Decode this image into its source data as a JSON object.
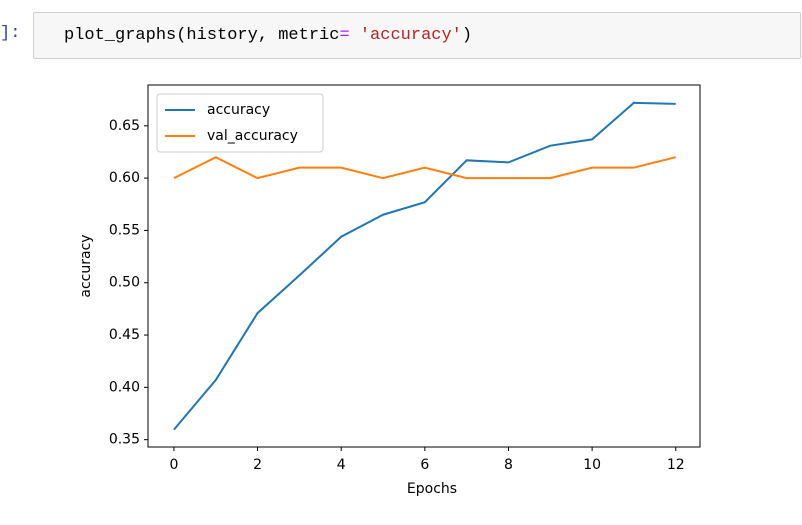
{
  "code_cell": {
    "prompt": "]:",
    "tokens": [
      "plot_graphs(history, metric",
      "=",
      " 'accuracy'",
      ")"
    ]
  },
  "chart_data": {
    "type": "line",
    "xlabel": "Epochs",
    "ylabel": "accuracy",
    "x": [
      0,
      1,
      2,
      3,
      4,
      5,
      6,
      7,
      8,
      9,
      10,
      11,
      12
    ],
    "series": [
      {
        "name": "accuracy",
        "color": "#1f77b4",
        "values": [
          0.3596,
          0.407,
          0.471,
          0.507,
          0.544,
          0.565,
          0.577,
          0.617,
          0.615,
          0.631,
          0.637,
          0.672,
          0.671
        ]
      },
      {
        "name": "val_accuracy",
        "color": "#ff7f0e",
        "values": [
          0.6,
          0.62,
          0.6,
          0.61,
          0.61,
          0.6,
          0.61,
          0.6,
          0.6,
          0.6,
          0.61,
          0.61,
          0.62
        ]
      }
    ],
    "xlim": [
      -0.62,
      12.58
    ],
    "ylim": [
      0.343,
      0.689
    ],
    "xticks": [
      0,
      2,
      4,
      6,
      8,
      10,
      12
    ],
    "yticks": [
      0.35,
      {
        "value": 0.4,
        "label": "0.40"
      },
      0.45,
      {
        "value": 0.5,
        "label": "0.50"
      },
      0.55,
      {
        "value": 0.6,
        "label": "0.60"
      },
      0.65
    ],
    "legend": "upper left",
    "grid": false
  }
}
